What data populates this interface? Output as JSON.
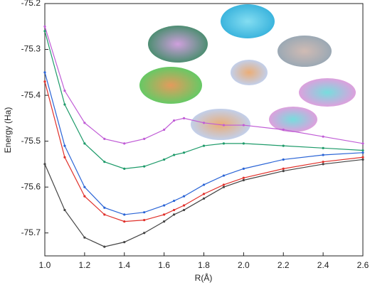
{
  "chart_data": {
    "type": "line",
    "x_label": "R(Å)",
    "y_label": "Energy (Ha)",
    "x": [
      1.0,
      1.1,
      1.2,
      1.3,
      1.4,
      1.5,
      1.6,
      1.65,
      1.7,
      1.8,
      1.9,
      2.0,
      2.2,
      2.4,
      2.6
    ],
    "series": [
      {
        "color": "#c05cd6",
        "values": [
          -75.25,
          -75.39,
          -75.46,
          -75.495,
          -75.505,
          -75.495,
          -75.475,
          -75.455,
          -75.45,
          -75.46,
          -75.465,
          -75.465,
          -75.475,
          -75.49,
          -75.505
        ]
      },
      {
        "color": "#1e9b6a",
        "values": [
          -75.26,
          -75.42,
          -75.505,
          -75.545,
          -75.56,
          -75.555,
          -75.54,
          -75.53,
          -75.525,
          -75.51,
          -75.505,
          -75.505,
          -75.51,
          -75.515,
          -75.52
        ]
      },
      {
        "color": "#2a64d6",
        "values": [
          -75.35,
          -75.51,
          -75.6,
          -75.645,
          -75.66,
          -75.655,
          -75.64,
          -75.63,
          -75.62,
          -75.595,
          -75.575,
          -75.56,
          -75.54,
          -75.53,
          -75.525
        ]
      },
      {
        "color": "#e0302a",
        "values": [
          -75.37,
          -75.535,
          -75.62,
          -75.66,
          -75.675,
          -75.672,
          -75.66,
          -75.65,
          -75.64,
          -75.615,
          -75.595,
          -75.58,
          -75.56,
          -75.545,
          -75.535
        ]
      },
      {
        "color": "#444444",
        "values": [
          -75.55,
          -75.65,
          -75.71,
          -75.73,
          -75.72,
          -75.7,
          -75.675,
          -75.66,
          -75.65,
          -75.625,
          -75.6,
          -75.585,
          -75.565,
          -75.55,
          -75.54
        ]
      }
    ],
    "xlim": [
      1.0,
      2.6
    ],
    "xticks": [
      {
        "value": 1.0,
        "label": "1.0"
      },
      1.2,
      1.4,
      1.6,
      1.8,
      {
        "value": 2.0,
        "label": "2.0"
      },
      2.2,
      2.4,
      2.6
    ],
    "ylim": [
      -75.75,
      -75.2
    ],
    "yticks": [
      -75.2,
      -75.3,
      -75.4,
      -75.5,
      -75.6,
      -75.7
    ],
    "grid": false
  }
}
